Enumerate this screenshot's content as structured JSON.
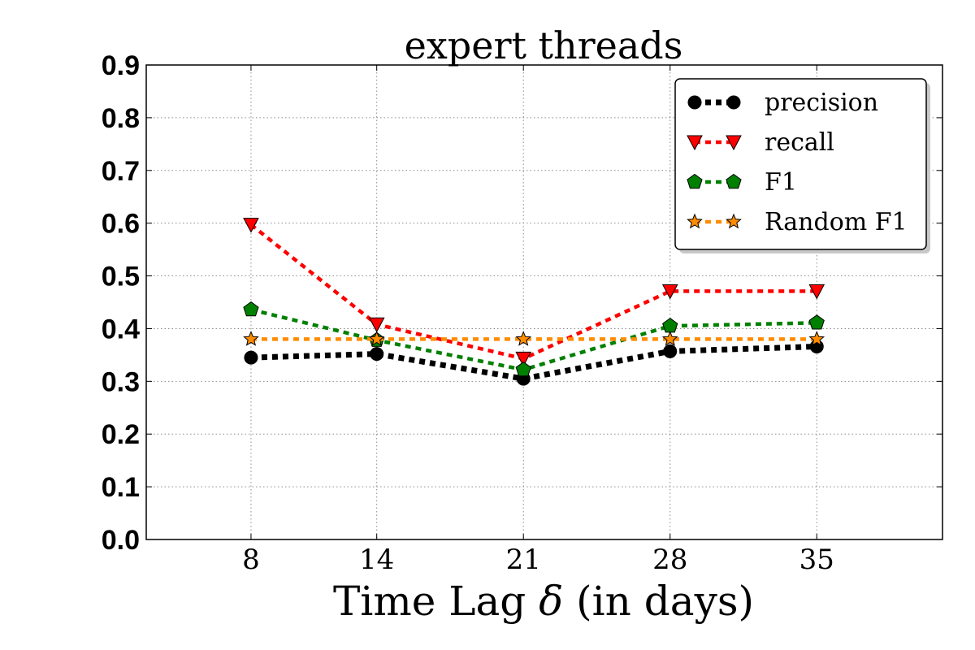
{
  "chart_data": {
    "type": "line",
    "title": "expert threads",
    "xlabel_main": "Time Lag ",
    "xlabel_symbol": "δ",
    "xlabel_tail": " (in days)",
    "ylabel": "",
    "categories": [
      "8",
      "14",
      "21",
      "28",
      "35"
    ],
    "x": [
      8,
      14,
      21,
      28,
      35
    ],
    "ylim": [
      0.0,
      0.9
    ],
    "yticks": [
      "0.0",
      "0.1",
      "0.2",
      "0.3",
      "0.4",
      "0.5",
      "0.6",
      "0.7",
      "0.8",
      "0.9"
    ],
    "grid": true,
    "legend_position": "top-right",
    "series": [
      {
        "name": "precision",
        "marker": "circle",
        "color": "#000000",
        "values": [
          0.345,
          0.352,
          0.305,
          0.357,
          0.366
        ]
      },
      {
        "name": "recall",
        "marker": "triangle-down",
        "color": "#ff0000",
        "values": [
          0.597,
          0.408,
          0.343,
          0.471,
          0.471
        ]
      },
      {
        "name": "F1",
        "marker": "pentagon",
        "color": "#008000",
        "values": [
          0.436,
          0.378,
          0.322,
          0.405,
          0.411
        ]
      },
      {
        "name": "Random F1",
        "marker": "star",
        "color": "#ff8c00",
        "values": [
          0.38,
          0.38,
          0.38,
          0.38,
          0.38
        ]
      }
    ]
  }
}
